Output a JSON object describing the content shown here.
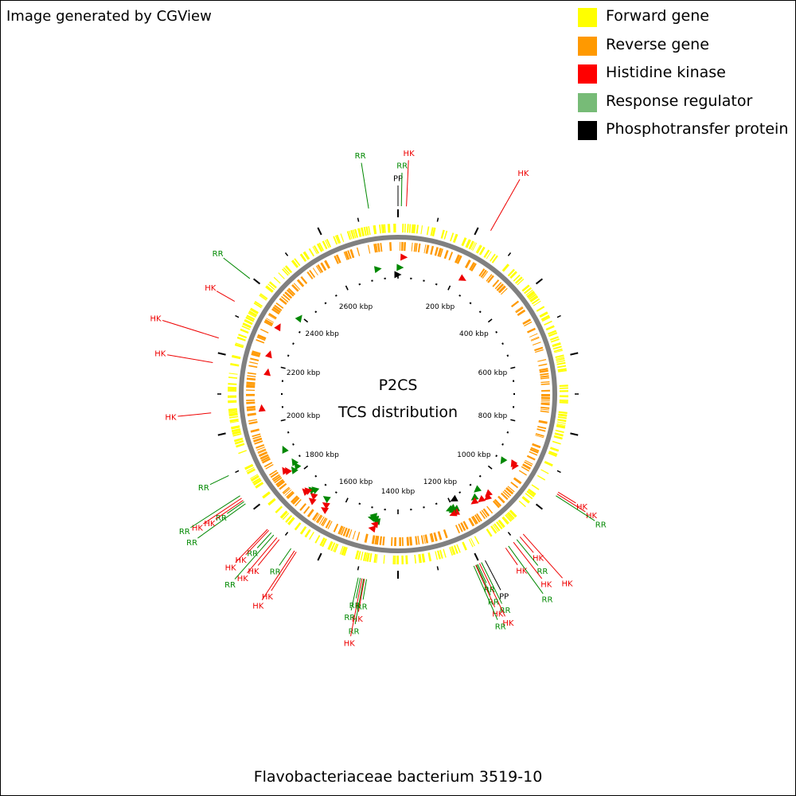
{
  "credit": "Image generated by CGView",
  "organism": "Flavobacteriaceae bacterium 3519-10",
  "center": {
    "title": "P2CS",
    "subtitle": "TCS distribution"
  },
  "genome_length_kbp": 2800,
  "legend": [
    {
      "name": "Forward gene",
      "color": "#ffff00"
    },
    {
      "name": "Reverse gene",
      "color": "#ff9900"
    },
    {
      "name": "Histidine kinase",
      "color": "#ff0000"
    },
    {
      "name": "Response regulator",
      "color": "#77bb77"
    },
    {
      "name": "Phosphotransfer protein",
      "color": "#000000"
    }
  ],
  "colors": {
    "forward": "#ffff00",
    "reverse": "#ff9900",
    "hk": "#ee0000",
    "rr": "#008800",
    "pp": "#000000",
    "backbone": "#808080"
  },
  "tick_labels": [
    {
      "kbp": 200,
      "text": "200 kbp"
    },
    {
      "kbp": 400,
      "text": "400 kbp"
    },
    {
      "kbp": 600,
      "text": "600 kbp"
    },
    {
      "kbp": 800,
      "text": "800 kbp"
    },
    {
      "kbp": 1000,
      "text": "1000 kbp"
    },
    {
      "kbp": 1200,
      "text": "1200 kbp"
    },
    {
      "kbp": 1400,
      "text": "1400 kbp"
    },
    {
      "kbp": 1600,
      "text": "1600 kbp"
    },
    {
      "kbp": 1800,
      "text": "1800 kbp"
    },
    {
      "kbp": 2000,
      "text": "2000 kbp"
    },
    {
      "kbp": 2200,
      "text": "2200 kbp"
    },
    {
      "kbp": 2400,
      "text": "2400 kbp"
    },
    {
      "kbp": 2600,
      "text": "2600 kbp"
    }
  ],
  "tcs_features": [
    {
      "type": "PP",
      "kbp": 0
    },
    {
      "type": "RR",
      "kbp": 8
    },
    {
      "type": "HK",
      "kbp": 20
    },
    {
      "type": "HK",
      "kbp": 230
    },
    {
      "type": "HK",
      "kbp": 945
    },
    {
      "type": "HK",
      "kbp": 950
    },
    {
      "type": "RR",
      "kbp": 955
    },
    {
      "type": "HK",
      "kbp": 1075
    },
    {
      "type": "HK",
      "kbp": 1085
    },
    {
      "type": "RR",
      "kbp": 1095
    },
    {
      "type": "HK",
      "kbp": 1105
    },
    {
      "type": "RR",
      "kbp": 1120
    },
    {
      "type": "HK",
      "kbp": 1128
    },
    {
      "type": "PP",
      "kbp": 1185
    },
    {
      "type": "RR",
      "kbp": 1195
    },
    {
      "type": "HK",
      "kbp": 1200
    },
    {
      "type": "RR",
      "kbp": 1205
    },
    {
      "type": "RR",
      "kbp": 1208
    },
    {
      "type": "HK",
      "kbp": 1210
    },
    {
      "type": "RR",
      "kbp": 1215
    },
    {
      "type": "RR",
      "kbp": 1475
    },
    {
      "type": "HK",
      "kbp": 1480
    },
    {
      "type": "RR",
      "kbp": 1482
    },
    {
      "type": "HK",
      "kbp": 1486
    },
    {
      "type": "RR",
      "kbp": 1490
    },
    {
      "type": "RR",
      "kbp": 1495
    },
    {
      "type": "HK",
      "kbp": 1655
    },
    {
      "type": "HK",
      "kbp": 1660
    },
    {
      "type": "RR",
      "kbp": 1670
    },
    {
      "type": "HK",
      "kbp": 1705
    },
    {
      "type": "HK",
      "kbp": 1712
    },
    {
      "type": "RR",
      "kbp": 1722
    },
    {
      "type": "RR",
      "kbp": 1730
    },
    {
      "type": "HK",
      "kbp": 1738
    },
    {
      "type": "HK",
      "kbp": 1742
    },
    {
      "type": "RR",
      "kbp": 1822
    },
    {
      "type": "RR",
      "kbp": 1828
    },
    {
      "type": "HK",
      "kbp": 1832
    },
    {
      "type": "HK",
      "kbp": 1838
    },
    {
      "type": "RR",
      "kbp": 1845
    },
    {
      "type": "RR",
      "kbp": 1900
    },
    {
      "type": "HK",
      "kbp": 2055
    },
    {
      "type": "HK",
      "kbp": 2175
    },
    {
      "type": "HK",
      "kbp": 2235
    },
    {
      "type": "HK",
      "kbp": 2330
    },
    {
      "type": "RR",
      "kbp": 2395
    },
    {
      "type": "RR",
      "kbp": 2730
    }
  ]
}
